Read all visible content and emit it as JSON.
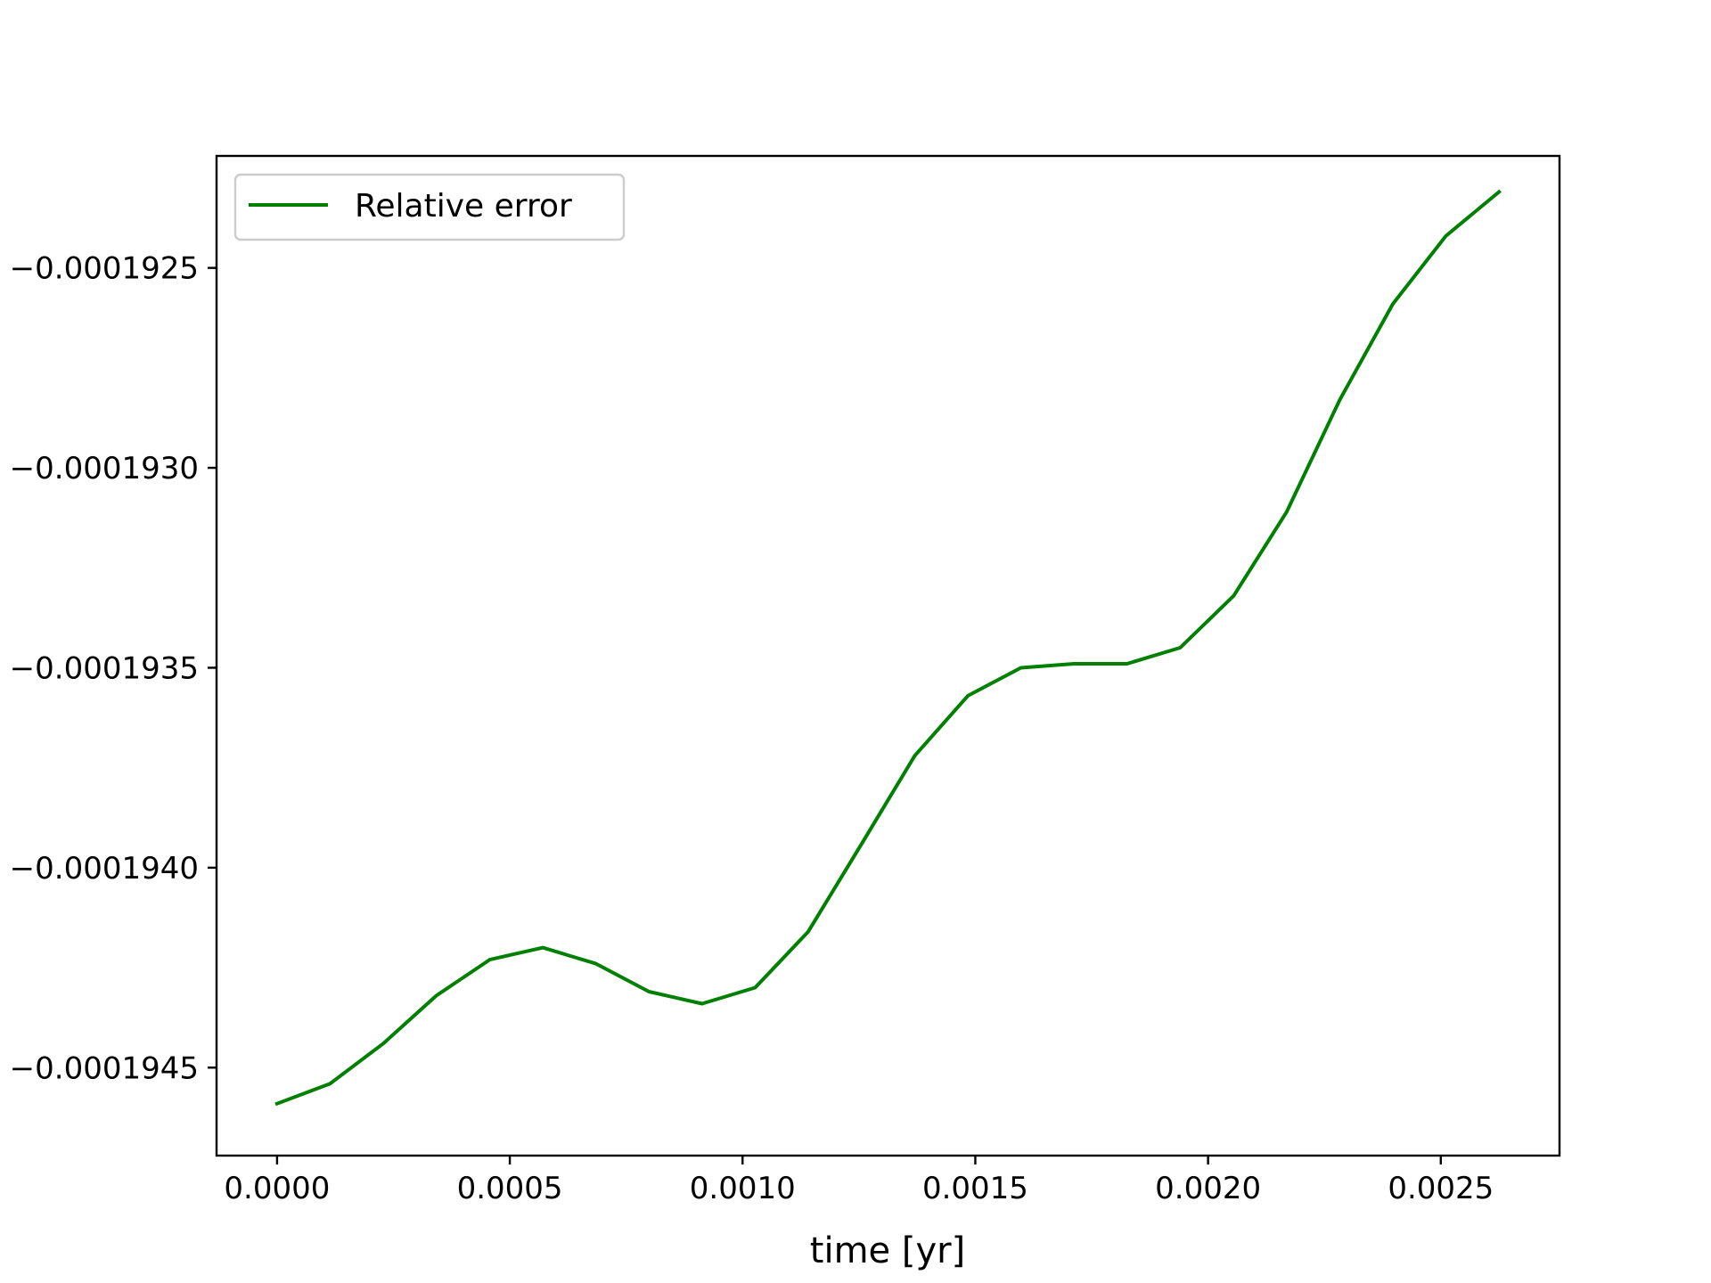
{
  "chart_data": {
    "type": "line",
    "title": "",
    "xlabel": "time [yr]",
    "ylabel": "",
    "xlim": [
      -0.00013,
      0.002755
    ],
    "ylim": [
      -0.00019472,
      -0.00019222
    ],
    "x_ticks": [
      0.0,
      0.0005,
      0.001,
      0.0015,
      0.002,
      0.0025
    ],
    "x_tick_labels": [
      "0.0000",
      "0.0005",
      "0.0010",
      "0.0015",
      "0.0020",
      "0.0025"
    ],
    "y_ticks": [
      -0.0001925,
      -0.000193,
      -0.0001935,
      -0.000194,
      -0.0001945
    ],
    "y_tick_labels": [
      "−0.0001925",
      "−0.0001930",
      "−0.0001935",
      "−0.0001940",
      "−0.0001945"
    ],
    "grid": false,
    "legend_position": "upper-left",
    "series": [
      {
        "name": "Relative error",
        "color": "#008000",
        "x": [
          0.0,
          0.000114,
          0.000228,
          0.000342,
          0.000457,
          0.000571,
          0.000685,
          0.000799,
          0.000913,
          0.001027,
          0.001141,
          0.001256,
          0.00137,
          0.001484,
          0.001598,
          0.001712,
          0.001826,
          0.00194,
          0.002055,
          0.002169,
          0.002283,
          0.002397,
          0.002511,
          0.002625
        ],
        "y": [
          -0.00019459,
          -0.00019454,
          -0.00019444,
          -0.00019432,
          -0.00019423,
          -0.0001942,
          -0.00019424,
          -0.00019431,
          -0.00019434,
          -0.0001943,
          -0.00019416,
          -0.00019394,
          -0.00019372,
          -0.00019357,
          -0.0001935,
          -0.00019349,
          -0.00019349,
          -0.00019345,
          -0.00019332,
          -0.00019311,
          -0.00019283,
          -0.00019259,
          -0.00019242,
          -0.00019231
        ]
      }
    ]
  }
}
